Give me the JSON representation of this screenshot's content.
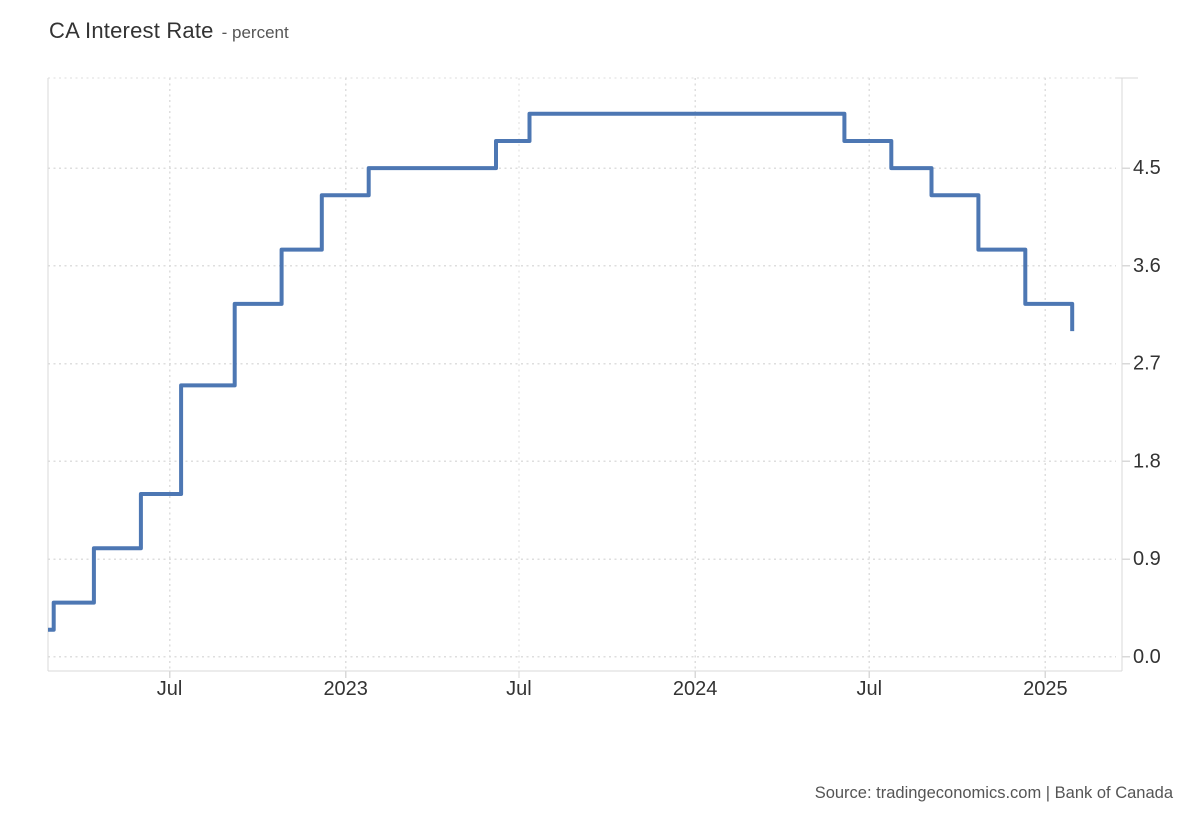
{
  "page": {
    "title": "CA Interest Rate",
    "subtitle": "- percent",
    "source": "Source: tradingeconomics.com | Bank of Canada"
  },
  "colors": {
    "line": "#4d77b3",
    "grid": "#dedede",
    "axis": "#d9d9d9",
    "tick_text": "#333333"
  },
  "chart_data": {
    "type": "line",
    "subtype": "step-after",
    "title": "CA Interest Rate",
    "ylabel": "percent",
    "legend_position": "none",
    "grid": "dotted",
    "x_axis": {
      "min": "2022-02-24",
      "max": "2025-03-22",
      "ticks": [
        {
          "date": "2022-07-01",
          "label": "Jul"
        },
        {
          "date": "2023-01-01",
          "label": "2023"
        },
        {
          "date": "2023-07-01",
          "label": "Jul"
        },
        {
          "date": "2024-01-01",
          "label": "2024"
        },
        {
          "date": "2024-07-01",
          "label": "Jul"
        },
        {
          "date": "2025-01-01",
          "label": "2025"
        }
      ]
    },
    "y_axis": {
      "position": "right",
      "min": -0.13,
      "max": 5.33,
      "ticks": [
        0.0,
        0.9,
        1.8,
        2.7,
        3.6,
        4.5
      ],
      "tick_labels": [
        "0.0",
        "0.9",
        "1.8",
        "2.7",
        "3.6",
        "4.5"
      ]
    },
    "series": [
      {
        "name": "CA Interest Rate",
        "unit": "percent",
        "points": [
          [
            "2022-02-24",
            0.25
          ],
          [
            "2022-03-02",
            0.5
          ],
          [
            "2022-04-13",
            1.0
          ],
          [
            "2022-06-01",
            1.5
          ],
          [
            "2022-07-13",
            2.5
          ],
          [
            "2022-09-07",
            3.25
          ],
          [
            "2022-10-26",
            3.75
          ],
          [
            "2022-12-07",
            4.25
          ],
          [
            "2023-01-25",
            4.5
          ],
          [
            "2023-06-07",
            4.75
          ],
          [
            "2023-07-12",
            5.0
          ],
          [
            "2024-06-05",
            4.75
          ],
          [
            "2024-07-24",
            4.5
          ],
          [
            "2024-09-04",
            4.25
          ],
          [
            "2024-10-23",
            3.75
          ],
          [
            "2024-12-11",
            3.25
          ],
          [
            "2025-01-29",
            3.0
          ]
        ]
      }
    ]
  }
}
